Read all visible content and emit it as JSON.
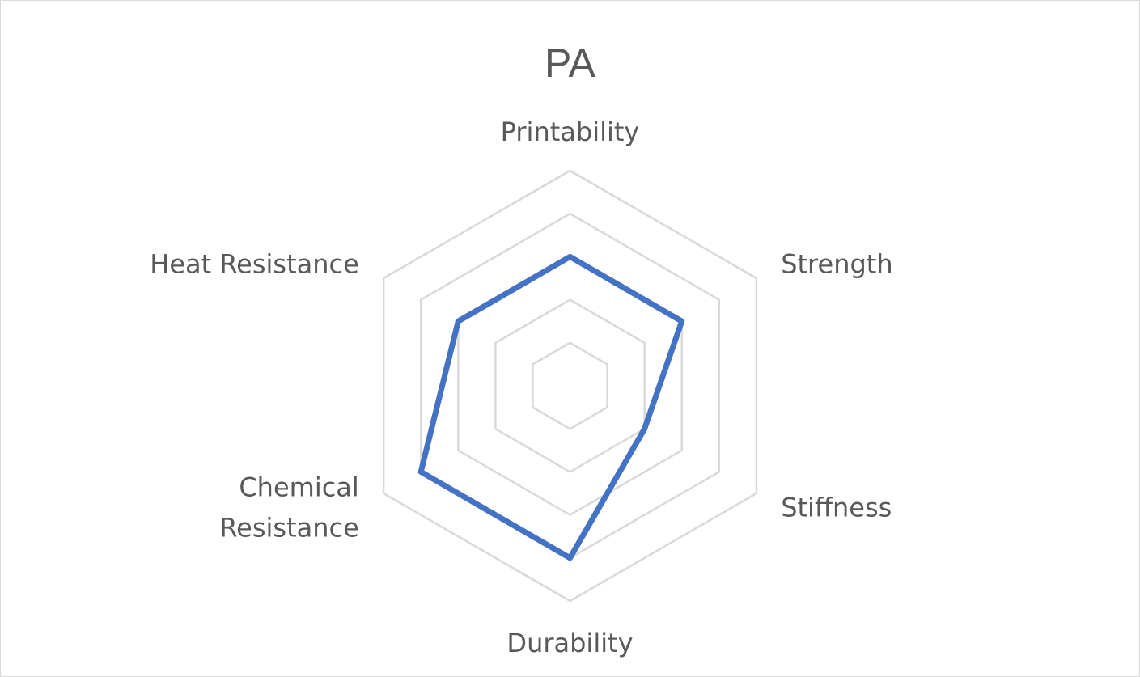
{
  "chart_data": {
    "type": "radar",
    "title": "PA",
    "categories": [
      "Printability",
      "Strength",
      "Stiffness",
      "Durability",
      "Chemical Resistance",
      "Heat Resistance"
    ],
    "category_lines": [
      [
        "Printability"
      ],
      [
        "Strength"
      ],
      [
        "Stiffness"
      ],
      [
        "Durability"
      ],
      [
        "Chemical",
        "Resistance"
      ],
      [
        "Heat Resistance"
      ]
    ],
    "series": [
      {
        "values": [
          3,
          3,
          2,
          4,
          4,
          3
        ]
      }
    ],
    "rlim": [
      0,
      5
    ],
    "grid": true,
    "legend": "none",
    "colors": {
      "series": "#4472c4",
      "grid": "#d9d9d9",
      "text": "#595959"
    }
  }
}
